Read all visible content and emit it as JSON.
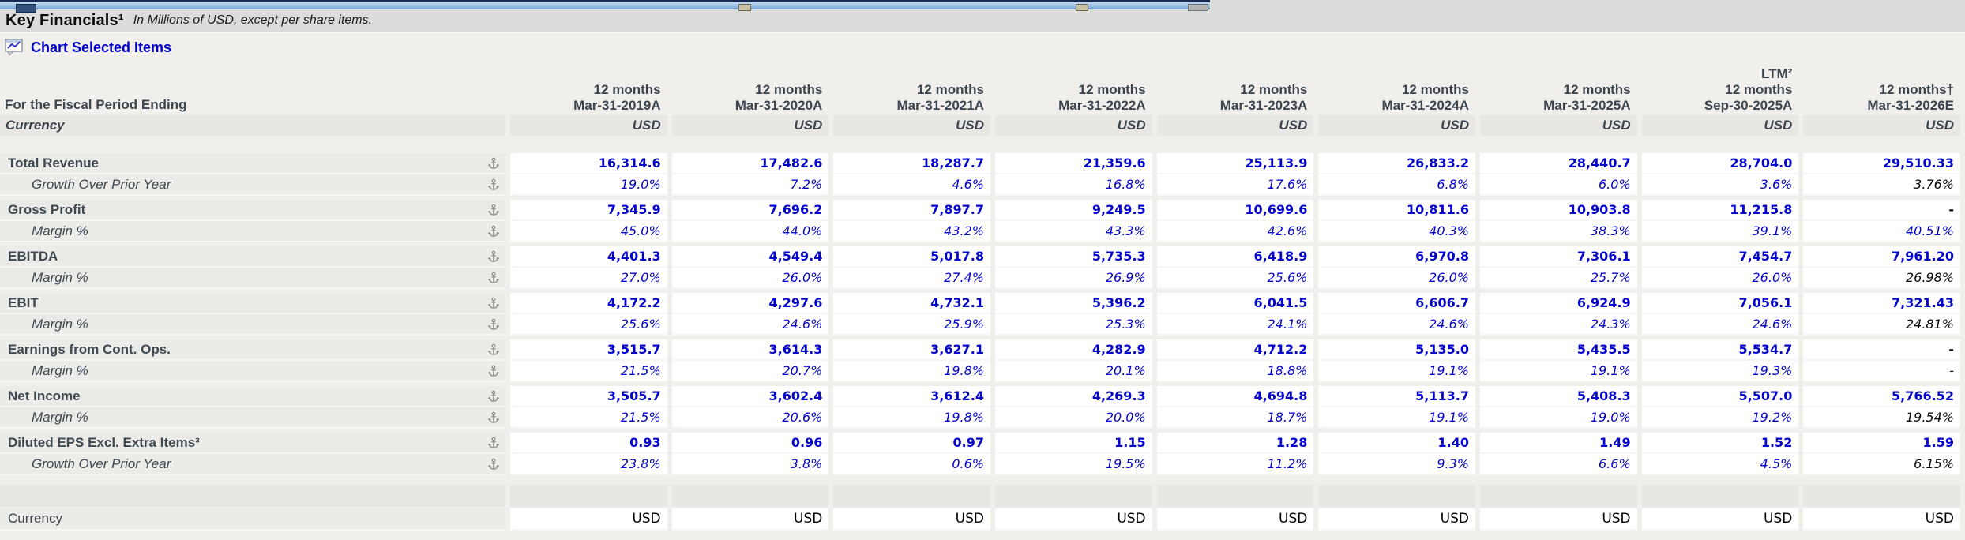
{
  "title": {
    "text": "Key Financials¹",
    "subtitle": "In Millions of USD, except per share items."
  },
  "toolbar": {
    "chart_link": "Chart Selected Items"
  },
  "colors": {
    "value_blue": "#0404cb",
    "estimate_black": "#0b0b0b",
    "header_text": "#3d4650",
    "label_bg": "#ebebe8",
    "band_bg": "#e8e7e4"
  },
  "table": {
    "fiscal_period_label": "For the Fiscal Period Ending",
    "currency_label": "Currency",
    "columns": [
      {
        "lines": [
          "12 months",
          "Mar-31-2019A"
        ]
      },
      {
        "lines": [
          "12 months",
          "Mar-31-2020A"
        ]
      },
      {
        "lines": [
          "12 months",
          "Mar-31-2021A"
        ]
      },
      {
        "lines": [
          "12 months",
          "Mar-31-2022A"
        ]
      },
      {
        "lines": [
          "12 months",
          "Mar-31-2023A"
        ]
      },
      {
        "lines": [
          "12 months",
          "Mar-31-2024A"
        ]
      },
      {
        "lines": [
          "12 months",
          "Mar-31-2025A"
        ]
      },
      {
        "lines": [
          "LTM²",
          "12 months",
          "Sep-30-2025A"
        ]
      },
      {
        "lines": [
          "12 months†",
          "Mar-31-2026E"
        ]
      }
    ],
    "currency_row": [
      "USD",
      "USD",
      "USD",
      "USD",
      "USD",
      "USD",
      "USD",
      "USD",
      "USD"
    ],
    "rows": [
      {
        "label": "Total Revenue",
        "style": "main",
        "last_black": false,
        "values": [
          "16,314.6",
          "17,482.6",
          "18,287.7",
          "21,359.6",
          "25,113.9",
          "26,833.2",
          "28,440.7",
          "28,704.0",
          "29,510.33"
        ]
      },
      {
        "label": "Growth Over Prior Year",
        "style": "pct",
        "last_black": true,
        "values": [
          "19.0%",
          "7.2%",
          "4.6%",
          "16.8%",
          "17.6%",
          "6.8%",
          "6.0%",
          "3.6%",
          "3.76%"
        ]
      },
      {
        "label": "Gross Profit",
        "style": "main",
        "last_black": true,
        "values": [
          "7,345.9",
          "7,696.2",
          "7,897.7",
          "9,249.5",
          "10,699.6",
          "10,811.6",
          "10,903.8",
          "11,215.8",
          "-"
        ]
      },
      {
        "label": "Margin %",
        "style": "pct",
        "last_black": false,
        "values": [
          "45.0%",
          "44.0%",
          "43.2%",
          "43.3%",
          "42.6%",
          "40.3%",
          "38.3%",
          "39.1%",
          "40.51%"
        ]
      },
      {
        "label": "EBITDA",
        "style": "main",
        "last_black": false,
        "values": [
          "4,401.3",
          "4,549.4",
          "5,017.8",
          "5,735.3",
          "6,418.9",
          "6,970.8",
          "7,306.1",
          "7,454.7",
          "7,961.20"
        ]
      },
      {
        "label": "Margin %",
        "style": "pct",
        "last_black": true,
        "values": [
          "27.0%",
          "26.0%",
          "27.4%",
          "26.9%",
          "25.6%",
          "26.0%",
          "25.7%",
          "26.0%",
          "26.98%"
        ]
      },
      {
        "label": "EBIT",
        "style": "main",
        "last_black": false,
        "values": [
          "4,172.2",
          "4,297.6",
          "4,732.1",
          "5,396.2",
          "6,041.5",
          "6,606.7",
          "6,924.9",
          "7,056.1",
          "7,321.43"
        ]
      },
      {
        "label": "Margin %",
        "style": "pct",
        "last_black": true,
        "values": [
          "25.6%",
          "24.6%",
          "25.9%",
          "25.3%",
          "24.1%",
          "24.6%",
          "24.3%",
          "24.6%",
          "24.81%"
        ]
      },
      {
        "label": "Earnings from Cont. Ops.",
        "style": "main",
        "last_black": true,
        "values": [
          "3,515.7",
          "3,614.3",
          "3,627.1",
          "4,282.9",
          "4,712.2",
          "5,135.0",
          "5,435.5",
          "5,534.7",
          "-"
        ]
      },
      {
        "label": "Margin %",
        "style": "pct",
        "last_black": true,
        "values": [
          "21.5%",
          "20.7%",
          "19.8%",
          "20.1%",
          "18.8%",
          "19.1%",
          "19.1%",
          "19.3%",
          "-"
        ]
      },
      {
        "label": "Net Income",
        "style": "main",
        "last_black": false,
        "values": [
          "3,505.7",
          "3,602.4",
          "3,612.4",
          "4,269.3",
          "4,694.8",
          "5,113.7",
          "5,408.3",
          "5,507.0",
          "5,766.52"
        ]
      },
      {
        "label": "Margin %",
        "style": "pct",
        "last_black": true,
        "values": [
          "21.5%",
          "20.6%",
          "19.8%",
          "20.0%",
          "18.7%",
          "19.1%",
          "19.0%",
          "19.2%",
          "19.54%"
        ]
      },
      {
        "label": "Diluted EPS Excl. Extra Items³",
        "style": "main",
        "last_black": false,
        "values": [
          "0.93",
          "0.96",
          "0.97",
          "1.15",
          "1.28",
          "1.40",
          "1.49",
          "1.52",
          "1.59"
        ]
      },
      {
        "label": "Growth Over Prior Year",
        "style": "pct",
        "last_black": true,
        "values": [
          "23.8%",
          "3.8%",
          "0.6%",
          "19.5%",
          "11.2%",
          "9.3%",
          "6.6%",
          "4.5%",
          "6.15%"
        ]
      }
    ],
    "footer": {
      "currency_label": "Currency",
      "values": [
        "USD",
        "USD",
        "USD",
        "USD",
        "USD",
        "USD",
        "USD",
        "USD",
        "USD"
      ]
    }
  }
}
